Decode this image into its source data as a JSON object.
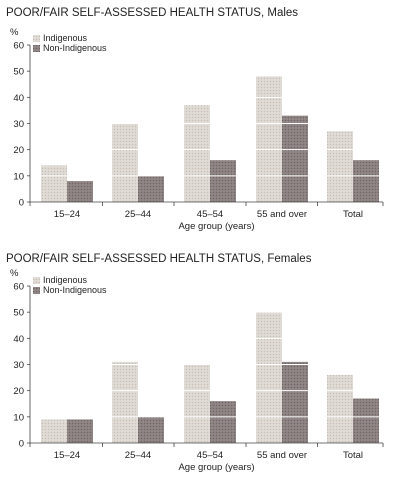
{
  "chart_data": [
    {
      "type": "bar",
      "title": "POOR/FAIR SELF-ASSESSED HEALTH STATUS, Males",
      "ylabel": "%",
      "xlabel": "Age group (years)",
      "ylim": [
        0,
        60
      ],
      "yticks": [
        0,
        10,
        20,
        30,
        40,
        50,
        60
      ],
      "grid": "white horizontal gridlines over bars",
      "legend_position": "top-left",
      "categories": [
        "15–24",
        "25–44",
        "45–54",
        "55 and over",
        "Total"
      ],
      "series": [
        {
          "name": "Indigenous",
          "color": "#d8d3cc",
          "values": [
            14,
            30,
            37,
            48,
            27
          ]
        },
        {
          "name": "Non-Indigenous",
          "color": "#8a7f7f",
          "values": [
            8,
            10,
            16,
            33,
            16
          ]
        }
      ]
    },
    {
      "type": "bar",
      "title": "POOR/FAIR SELF-ASSESSED HEALTH STATUS, Females",
      "ylabel": "%",
      "xlabel": "Age group (years)",
      "ylim": [
        0,
        60
      ],
      "yticks": [
        0,
        10,
        20,
        30,
        40,
        50,
        60
      ],
      "grid": "white horizontal gridlines over bars",
      "legend_position": "top-left",
      "categories": [
        "15–24",
        "25–44",
        "45–54",
        "55 and over",
        "Total"
      ],
      "series": [
        {
          "name": "Indigenous",
          "color": "#d8d3cc",
          "values": [
            9,
            31,
            30,
            50,
            26
          ]
        },
        {
          "name": "Non-Indigenous",
          "color": "#8a7f7f",
          "values": [
            9,
            10,
            16,
            31,
            17
          ]
        }
      ]
    }
  ]
}
